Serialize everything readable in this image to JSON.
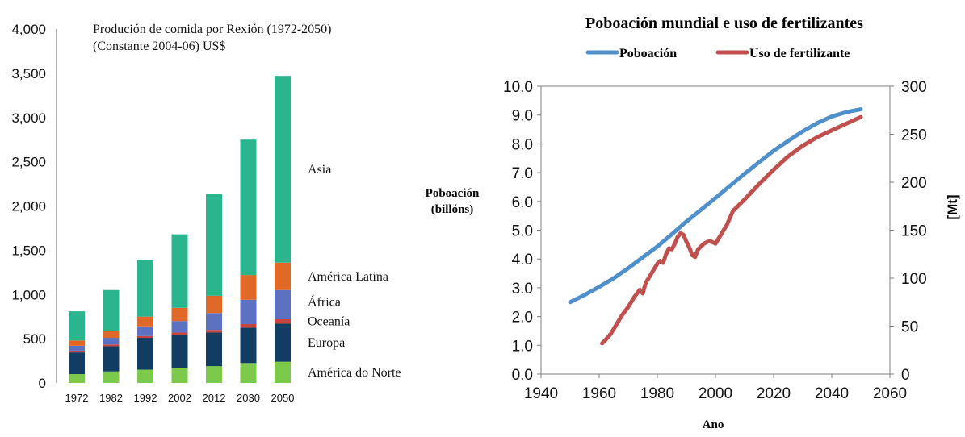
{
  "left_chart_title_line1": "Produción de comida por Rexión (1972-2050)",
  "left_chart_title_line2": "(Constante 2004-06) US$",
  "right_chart_title": "Poboación mundial e uso de fertilizantes",
  "right_ylabel_line1": "Poboación",
  "right_ylabel_line2": "(billóns)",
  "right_y2label": "[Mt]",
  "right_xlabel": "Ano",
  "colors": {
    "asia": "#2bb58f",
    "america_latina": "#e0692a",
    "africa": "#5c72c0",
    "oceania": "#c8443e",
    "europa": "#123d63",
    "america_norte": "#7cc94b",
    "poboacion": "#4f8fca",
    "fertilizante": "#c0504d"
  },
  "chart_data": [
    {
      "type": "bar",
      "stacked": true,
      "title": "Produción de comida por Rexión (1972-2050)",
      "subtitle": "(Constante 2004-06) US$",
      "categories": [
        "1972",
        "1982",
        "1992",
        "2002",
        "2012",
        "2030",
        "2050"
      ],
      "ylim": [
        0,
        4000
      ],
      "yticks": [
        "0",
        "500",
        "1,000",
        "1,500",
        "2,000",
        "2,500",
        "3,000",
        "3,500",
        "4,000"
      ],
      "ytick_values": [
        0,
        500,
        1000,
        1500,
        2000,
        2500,
        3000,
        3500,
        4000
      ],
      "grid": false,
      "series": [
        {
          "name": "América do Norte",
          "color": "#7cc94b",
          "values": [
            100,
            130,
            150,
            165,
            190,
            225,
            240
          ]
        },
        {
          "name": "Europa",
          "color": "#123d63",
          "values": [
            245,
            285,
            360,
            380,
            380,
            400,
            430
          ]
        },
        {
          "name": "Oceanía",
          "color": "#c8443e",
          "values": [
            20,
            20,
            20,
            25,
            30,
            40,
            50
          ]
        },
        {
          "name": "África",
          "color": "#5c72c0",
          "values": [
            55,
            75,
            110,
            130,
            190,
            275,
            330
          ]
        },
        {
          "name": "América Latina",
          "color": "#e0692a",
          "values": [
            60,
            80,
            110,
            150,
            195,
            280,
            310
          ]
        },
        {
          "name": "Asia",
          "color": "#2bb58f",
          "values": [
            330,
            460,
            640,
            830,
            1150,
            1530,
            2110
          ]
        }
      ]
    },
    {
      "type": "line",
      "title": "Poboación mundial e uso de fertilizantes",
      "xlabel": "Ano",
      "ylabel": "Poboación (billóns)",
      "y2label": "[Mt]",
      "xlim": [
        1940,
        2060
      ],
      "ylim": [
        0,
        10
      ],
      "y2lim": [
        0,
        300
      ],
      "xticks": [
        "1940",
        "1960",
        "1980",
        "2000",
        "2020",
        "2040",
        "2060"
      ],
      "xtick_values": [
        1940,
        1960,
        1980,
        2000,
        2020,
        2040,
        2060
      ],
      "yticks": [
        "0.0",
        "1.0",
        "2.0",
        "3.0",
        "4.0",
        "5.0",
        "6.0",
        "7.0",
        "8.0",
        "9.0",
        "10.0"
      ],
      "ytick_values": [
        0,
        1,
        2,
        3,
        4,
        5,
        6,
        7,
        8,
        9,
        10
      ],
      "y2ticks": [
        "0",
        "50",
        "100",
        "150",
        "200",
        "250",
        "300"
      ],
      "y2tick_values": [
        0,
        50,
        100,
        150,
        200,
        250,
        300
      ],
      "legend_position": "top",
      "series": [
        {
          "name": "Poboación",
          "axis": "left",
          "color": "#4f8fca",
          "x": [
            1950,
            1955,
            1960,
            1965,
            1970,
            1975,
            1980,
            1985,
            1990,
            1995,
            2000,
            2005,
            2010,
            2015,
            2020,
            2025,
            2030,
            2035,
            2040,
            2045,
            2050
          ],
          "y": [
            2.5,
            2.75,
            3.03,
            3.33,
            3.68,
            4.06,
            4.43,
            4.86,
            5.3,
            5.71,
            6.12,
            6.54,
            6.96,
            7.36,
            7.76,
            8.1,
            8.43,
            8.72,
            8.95,
            9.1,
            9.2
          ]
        },
        {
          "name": "Uso de fertilizante",
          "axis": "right",
          "color": "#c0504d",
          "x": [
            1961,
            1962,
            1964,
            1966,
            1968,
            1970,
            1972,
            1974,
            1975,
            1976,
            1978,
            1980,
            1981,
            1982,
            1983,
            1984,
            1985,
            1986,
            1987,
            1988,
            1989,
            1990,
            1991,
            1992,
            1993,
            1994,
            1996,
            1998,
            2000,
            2002,
            2004,
            2006,
            2008,
            2010,
            2015,
            2020,
            2025,
            2030,
            2035,
            2040,
            2045,
            2050
          ],
          "y": [
            32,
            35,
            42,
            52,
            62,
            70,
            80,
            88,
            84,
            95,
            105,
            115,
            118,
            116,
            125,
            131,
            130,
            136,
            143,
            147,
            145,
            138,
            132,
            124,
            122,
            130,
            136,
            139,
            136,
            146,
            156,
            170,
            176,
            182,
            198,
            213,
            227,
            238,
            247,
            254,
            261,
            268
          ]
        }
      ]
    }
  ]
}
